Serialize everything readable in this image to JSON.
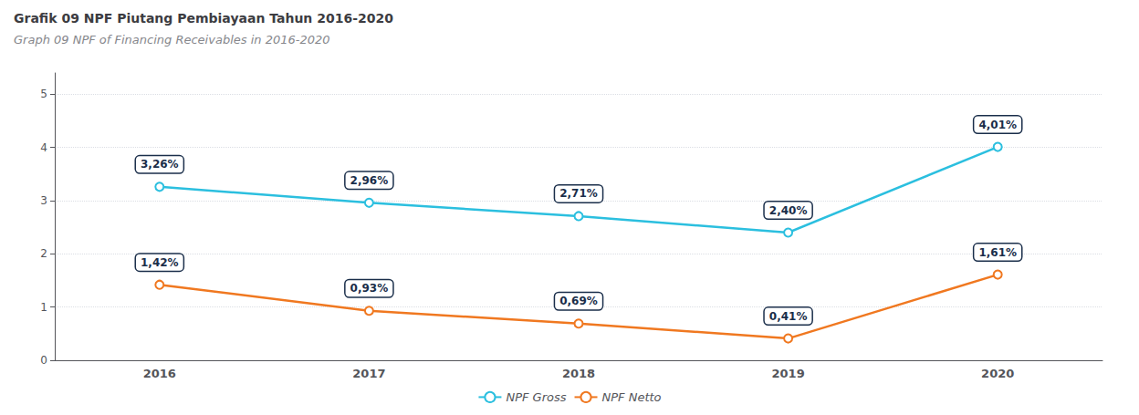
{
  "chart_data": {
    "type": "line",
    "title": "Grafik 09 NPF Piutang Pembiayaan Tahun 2016-2020",
    "subtitle": "Graph 09 NPF of Financing Receivables in 2016-2020",
    "categories": [
      "2016",
      "2017",
      "2018",
      "2019",
      "2020"
    ],
    "series": [
      {
        "name": "NPF Gross",
        "color": "#2BBFDF",
        "marker": "circle",
        "values": [
          3.26,
          2.96,
          2.71,
          2.4,
          4.01
        ],
        "value_labels": [
          "3,26%",
          "2,96%",
          "2,71%",
          "2,40%",
          "4,01%"
        ]
      },
      {
        "name": "NPF Netto",
        "color": "#F07820",
        "marker": "circle",
        "values": [
          1.42,
          0.93,
          0.69,
          0.41,
          1.61
        ],
        "value_labels": [
          "1,42%",
          "0,93%",
          "0,69%",
          "0,41%",
          "1,61%"
        ]
      }
    ],
    "ylim": [
      0,
      5.4
    ],
    "yticks": [
      0,
      1,
      2,
      3,
      4,
      5
    ],
    "grid": true,
    "legend": "bottom",
    "data_labels": true
  }
}
